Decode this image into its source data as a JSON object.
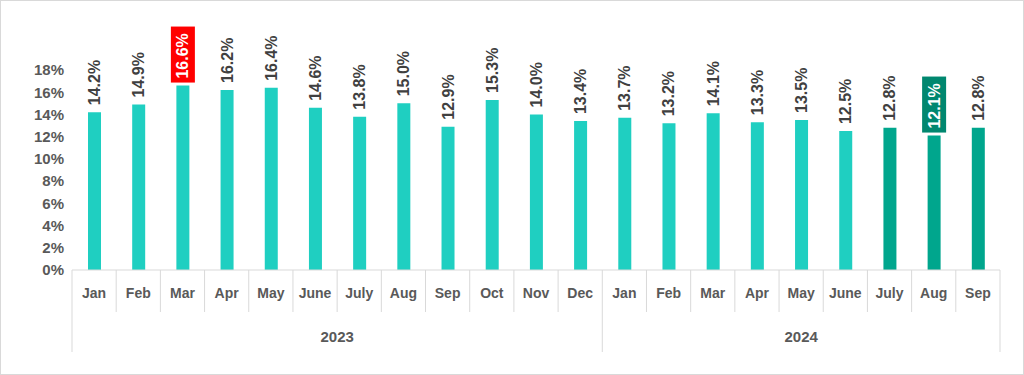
{
  "chart_data": {
    "type": "bar",
    "categories": [
      "Jan",
      "Feb",
      "Mar",
      "Apr",
      "May",
      "June",
      "July",
      "Aug",
      "Sep",
      "Oct",
      "Nov",
      "Dec",
      "Jan",
      "Feb",
      "Mar",
      "Apr",
      "May",
      "June",
      "July",
      "Aug",
      "Sep"
    ],
    "category_groups": [
      {
        "label": "2023",
        "count": 12
      },
      {
        "label": "2024",
        "count": 9
      }
    ],
    "values": [
      14.2,
      14.9,
      16.6,
      16.2,
      16.4,
      14.6,
      13.8,
      15.0,
      12.9,
      15.3,
      14.0,
      13.4,
      13.7,
      13.2,
      14.1,
      13.3,
      13.5,
      12.5,
      12.8,
      12.1,
      12.8
    ],
    "value_labels": [
      "14.2%",
      "14.9%",
      "16.6%",
      "16.2%",
      "16.4%",
      "14.6%",
      "13.8%",
      "15.0%",
      "12.9%",
      "15.3%",
      "14.0%",
      "13.4%",
      "13.7%",
      "13.2%",
      "14.1%",
      "13.3%",
      "13.5%",
      "12.5%",
      "12.8%",
      "12.1%",
      "12.8%"
    ],
    "colors": [
      "#1FCFC1",
      "#1FCFC1",
      "#1FCFC1",
      "#1FCFC1",
      "#1FCFC1",
      "#1FCFC1",
      "#1FCFC1",
      "#1FCFC1",
      "#1FCFC1",
      "#1FCFC1",
      "#1FCFC1",
      "#1FCFC1",
      "#1FCFC1",
      "#1FCFC1",
      "#1FCFC1",
      "#1FCFC1",
      "#1FCFC1",
      "#1FCFC1",
      "#00A68D",
      "#00A68D",
      "#00A68D"
    ],
    "ylim": [
      0,
      18
    ],
    "yticks": [
      {
        "value": 0,
        "label": "0%"
      },
      {
        "value": 2,
        "label": "2%"
      },
      {
        "value": 4,
        "label": "4%"
      },
      {
        "value": 6,
        "label": "6%"
      },
      {
        "value": 8,
        "label": "8%"
      },
      {
        "value": 10,
        "label": "10%"
      },
      {
        "value": 12,
        "label": "12%"
      },
      {
        "value": 14,
        "label": "14%"
      },
      {
        "value": 16,
        "label": "16%"
      },
      {
        "value": 18,
        "label": "18%"
      }
    ],
    "grid": false,
    "data_labels": true,
    "label_highlights": [
      {
        "index": 2,
        "color": "#FF0000"
      },
      {
        "index": 19,
        "color": "#00876F"
      }
    ]
  }
}
